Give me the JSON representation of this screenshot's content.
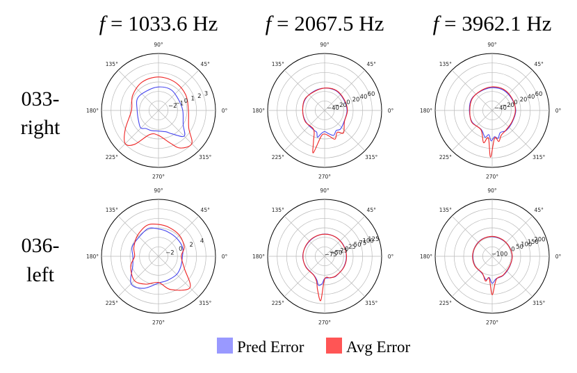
{
  "figure": {
    "column_titles": [
      {
        "italic": "f",
        "rest": " = 1033.6 Hz"
      },
      {
        "italic": "f",
        "rest": " = 2067.5 Hz"
      },
      {
        "italic": "f",
        "rest": " = 3962.1 Hz"
      }
    ],
    "row_labels": [
      {
        "line1": "033-",
        "line2": "right"
      },
      {
        "line1": "036-",
        "line2": "left"
      }
    ],
    "legend": {
      "items": [
        {
          "label": "Pred Error",
          "color": "#9999ff"
        },
        {
          "label": "Avg Error",
          "color": "#ff5555"
        }
      ]
    },
    "angle_labels": [
      "0°",
      "45°",
      "90°",
      "135°",
      "180°",
      "225°",
      "270°",
      "315°"
    ]
  },
  "chart_data": [
    {
      "type": "polar",
      "row": "033-right",
      "frequency": "f = 1033.6 Hz",
      "rlim": [
        -4,
        4
      ],
      "radial_ticks": [
        "−2",
        "−1",
        "0",
        "1",
        "2",
        "3"
      ],
      "radial_tick_values": [
        -2,
        -1,
        0,
        1,
        2,
        3
      ],
      "radial_label_angle_deg": 20,
      "angle_deg": [
        0,
        30,
        60,
        90,
        120,
        150,
        180,
        210,
        225,
        235,
        250,
        270,
        290,
        300,
        315,
        330
      ],
      "series": [
        {
          "name": "Pred Error",
          "color": "#4444ee",
          "r": [
            -0.6,
            -0.8,
            -0.6,
            -0.7,
            -0.8,
            -0.6,
            -1.0,
            -0.8,
            -0.5,
            -0.9,
            -1.0,
            -1.1,
            -0.8,
            -0.2,
            1.1,
            0.0
          ]
        },
        {
          "name": "Avg Error",
          "color": "#ee2222",
          "r": [
            0.2,
            0.4,
            0.6,
            0.7,
            0.6,
            0.2,
            -0.2,
            1.4,
            2.6,
            1.8,
            -0.4,
            -0.5,
            0.9,
            2.1,
            2.6,
            0.9
          ]
        }
      ]
    },
    {
      "type": "polar",
      "row": "033-right",
      "frequency": "f = 2067.5 Hz",
      "rlim": [
        -60,
        80
      ],
      "radial_ticks": [
        "−40",
        "−20",
        "0",
        "20",
        "40",
        "60"
      ],
      "radial_tick_values": [
        -40,
        -20,
        0,
        20,
        40,
        60
      ],
      "radial_label_angle_deg": 20,
      "angle_deg": [
        0,
        30,
        60,
        90,
        120,
        150,
        180,
        210,
        240,
        250,
        255,
        262,
        270,
        280,
        290,
        300,
        310,
        330
      ],
      "series": [
        {
          "name": "Pred Error",
          "color": "#4444ee",
          "r": [
            -5,
            -6,
            -4,
            -5,
            -6,
            -5,
            -6,
            -6,
            -5,
            -3,
            8,
            -3,
            -8,
            -2,
            5,
            -3,
            0,
            -5
          ]
        },
        {
          "name": "Avg Error",
          "color": "#ee2222",
          "r": [
            -4,
            -5,
            -3,
            -5,
            -7,
            -4,
            -6,
            -5,
            -6,
            20,
            48,
            5,
            -2,
            4,
            15,
            2,
            12,
            -4
          ]
        }
      ]
    },
    {
      "type": "polar",
      "row": "033-right",
      "frequency": "f = 3962.1 Hz",
      "rlim": [
        -60,
        80
      ],
      "radial_ticks": [
        "−40",
        "−20",
        "0",
        "20",
        "40",
        "60"
      ],
      "radial_tick_values": [
        -40,
        -20,
        0,
        20,
        40,
        60
      ],
      "radial_label_angle_deg": 20,
      "angle_deg": [
        0,
        30,
        60,
        90,
        120,
        150,
        180,
        210,
        240,
        255,
        262,
        268,
        275,
        282,
        290,
        305,
        330
      ],
      "series": [
        {
          "name": "Pred Error",
          "color": "#4444ee",
          "r": [
            -2,
            -4,
            -3,
            -4,
            -5,
            -2,
            -4,
            -3,
            -6,
            8,
            0,
            15,
            5,
            10,
            -2,
            0,
            -3
          ]
        },
        {
          "name": "Avg Error",
          "color": "#ee2222",
          "r": [
            -3,
            -3,
            -1,
            -2,
            -4,
            -3,
            -5,
            -2,
            -5,
            22,
            8,
            55,
            8,
            18,
            5,
            -1,
            -4
          ]
        }
      ]
    },
    {
      "type": "polar",
      "row": "036-left",
      "frequency": "f = 1033.6 Hz",
      "rlim": [
        -4,
        6
      ],
      "radial_ticks": [
        "−2",
        "0",
        "2",
        "4"
      ],
      "radial_tick_values": [
        -2,
        0,
        2,
        4
      ],
      "radial_label_angle_deg": 20,
      "angle_deg": [
        0,
        20,
        45,
        70,
        90,
        110,
        135,
        160,
        180,
        200,
        225,
        245,
        270,
        290,
        315,
        335
      ],
      "series": [
        {
          "name": "Pred Error",
          "color": "#4444ee",
          "r": [
            0.2,
            0.5,
            0.5,
            0.6,
            0.8,
            1.2,
            0.8,
            0.9,
            0.5,
            0.8,
            2.8,
            2.2,
            0.7,
            0.5,
            0.5,
            0.3
          ]
        },
        {
          "name": "Avg Error",
          "color": "#ee2222",
          "r": [
            0.0,
            0.8,
            1.2,
            1.4,
            1.6,
            1.8,
            1.2,
            0.6,
            0.2,
            1.2,
            2.0,
            1.4,
            0.6,
            2.2,
            3.8,
            1.0
          ]
        }
      ]
    },
    {
      "type": "polar",
      "row": "036-left",
      "frequency": "f = 2067.5 Hz",
      "rlim": [
        -100,
        150
      ],
      "radial_ticks": [
        "−75",
        "−50",
        "−25",
        "0",
        "25",
        "50",
        "75",
        "100",
        "125"
      ],
      "radial_tick_values": [
        -75,
        -50,
        -25,
        0,
        25,
        50,
        75,
        100,
        125
      ],
      "radial_label_angle_deg": 20,
      "angle_deg": [
        0,
        30,
        60,
        90,
        120,
        150,
        180,
        210,
        240,
        252,
        258,
        265,
        270,
        285,
        300,
        330
      ],
      "series": [
        {
          "name": "Pred Error",
          "color": "#4444ee",
          "r": [
            -5,
            -4,
            -3,
            -2,
            -5,
            -6,
            -4,
            -6,
            -5,
            10,
            30,
            20,
            -2,
            -3,
            0,
            -4
          ]
        },
        {
          "name": "Avg Error",
          "color": "#ee2222",
          "r": [
            -4,
            -5,
            -3,
            -3,
            -4,
            -5,
            -5,
            -5,
            -4,
            15,
            50,
            95,
            0,
            -2,
            -1,
            -3
          ]
        }
      ]
    },
    {
      "type": "polar",
      "row": "036-left",
      "frequency": "f = 3962.1 Hz",
      "rlim": [
        -150,
        250
      ],
      "radial_ticks": [
        "−100",
        "0",
        "50",
        "100",
        "150",
        "200"
      ],
      "radial_tick_values": [
        -100,
        0,
        50,
        100,
        150,
        200
      ],
      "radial_label_angle_deg": 20,
      "angle_deg": [
        0,
        30,
        60,
        90,
        120,
        150,
        180,
        210,
        240,
        255,
        262,
        270,
        280,
        300,
        330
      ],
      "series": [
        {
          "name": "Pred Error",
          "color": "#4444ee",
          "r": [
            -10,
            -12,
            -14,
            -12,
            -10,
            -12,
            -14,
            -12,
            -10,
            20,
            0,
            40,
            10,
            5,
            -8
          ]
        },
        {
          "name": "Avg Error",
          "color": "#ee2222",
          "r": [
            -9,
            -13,
            -12,
            -10,
            -11,
            -13,
            -12,
            -11,
            -12,
            30,
            5,
            120,
            15,
            3,
            -10
          ]
        }
      ]
    }
  ]
}
